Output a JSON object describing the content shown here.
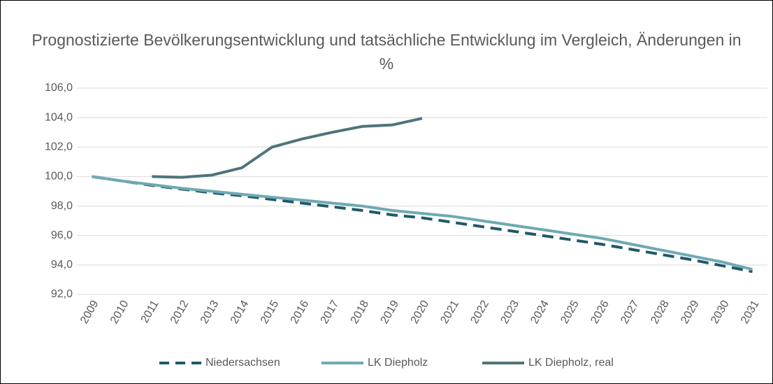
{
  "chart_data": {
    "type": "line",
    "title": "Prognostizierte Bevölkerungsentwicklung und tatsächliche Entwicklung im Vergleich, Änderungen in %",
    "categories": [
      "2009",
      "2010",
      "2011",
      "2012",
      "2013",
      "2014",
      "2015",
      "2016",
      "2017",
      "2018",
      "2019",
      "2020",
      "2021",
      "2022",
      "2023",
      "2024",
      "2025",
      "2026",
      "2027",
      "2028",
      "2029",
      "2030",
      "2031"
    ],
    "series": [
      {
        "name": "Niedersachsen",
        "color": "#215967",
        "dashed": true,
        "values": [
          100,
          99.7,
          99.4,
          99.15,
          98.9,
          98.7,
          98.45,
          98.2,
          97.95,
          97.7,
          97.4,
          97.2,
          96.9,
          96.6,
          96.3,
          96.0,
          95.7,
          95.4,
          95.05,
          94.7,
          94.35,
          93.95,
          93.55
        ]
      },
      {
        "name": "LK Diepholz",
        "color": "#6ea9b4",
        "values": [
          100,
          99.7,
          99.45,
          99.2,
          99.0,
          98.8,
          98.6,
          98.4,
          98.2,
          98.0,
          97.7,
          97.5,
          97.3,
          97.0,
          96.7,
          96.4,
          96.1,
          95.8,
          95.4,
          95.0,
          94.6,
          94.2,
          93.7
        ]
      },
      {
        "name": "LK Diepholz, real",
        "color": "#4f7479",
        "values": [
          null,
          null,
          100.0,
          99.95,
          100.1,
          100.6,
          102.0,
          102.55,
          103.0,
          103.4,
          103.5,
          103.95,
          null,
          null,
          null,
          null,
          null,
          null,
          null,
          null,
          null,
          null,
          null
        ]
      }
    ],
    "ylim": [
      92,
      106
    ],
    "yticks": [
      {
        "value": 92,
        "label": "92,0"
      },
      {
        "value": 94,
        "label": "94,0"
      },
      {
        "value": 96,
        "label": "96,0"
      },
      {
        "value": 98,
        "label": "98,0"
      },
      {
        "value": 100,
        "label": "100,0"
      },
      {
        "value": 102,
        "label": "102,0"
      },
      {
        "value": 104,
        "label": "104,0"
      },
      {
        "value": 106,
        "label": "106,0"
      }
    ],
    "grid": true,
    "legend": "bottom"
  }
}
